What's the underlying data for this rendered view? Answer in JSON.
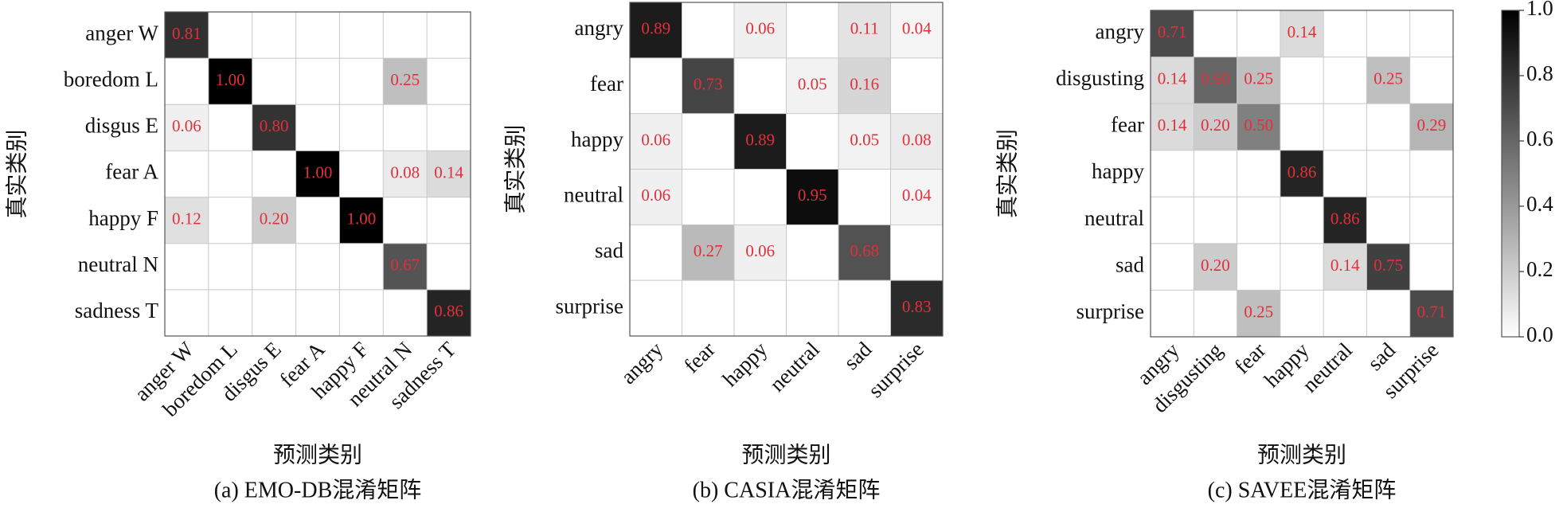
{
  "chart_data": [
    {
      "type": "heatmap",
      "caption": "(a) EMO-DB混淆矩阵",
      "x_label": "预测类别",
      "y_label": "真实类别",
      "categories": [
        "anger W",
        "boredom L",
        "disgus E",
        "fear A",
        "happy F",
        "neutral N",
        "sadness T"
      ],
      "values": [
        [
          0.81,
          null,
          null,
          null,
          null,
          null,
          null
        ],
        [
          null,
          1.0,
          null,
          null,
          null,
          0.25,
          null
        ],
        [
          0.06,
          null,
          0.8,
          null,
          null,
          null,
          null
        ],
        [
          null,
          null,
          null,
          1.0,
          null,
          0.08,
          0.14
        ],
        [
          0.12,
          null,
          0.2,
          null,
          1.0,
          null,
          null
        ],
        [
          null,
          null,
          null,
          null,
          null,
          0.67,
          null
        ],
        [
          null,
          null,
          null,
          null,
          null,
          null,
          0.86
        ]
      ],
      "value_labels": [
        [
          "0.81",
          null,
          null,
          null,
          null,
          null,
          null
        ],
        [
          null,
          "1.00",
          null,
          null,
          null,
          "0.25",
          null
        ],
        [
          "0.06",
          null,
          "0.80",
          null,
          null,
          null,
          null
        ],
        [
          null,
          null,
          null,
          "1.00",
          null,
          "0.08",
          "0.14"
        ],
        [
          "0.12",
          null,
          "0.20",
          null,
          "1.00",
          null,
          null
        ],
        [
          null,
          null,
          null,
          null,
          null,
          "0.67",
          null
        ],
        [
          null,
          null,
          null,
          null,
          null,
          null,
          "0.86"
        ]
      ],
      "cmap": [
        "#ffffff",
        "#000000"
      ],
      "label_color": "#e0303a"
    },
    {
      "type": "heatmap",
      "caption": "(b) CASIA混淆矩阵",
      "x_label": "预测类别",
      "y_label": "真实类别",
      "categories": [
        "angry",
        "fear",
        "happy",
        "neutral",
        "sad",
        "surprise"
      ],
      "values": [
        [
          0.89,
          null,
          0.06,
          null,
          0.11,
          0.04
        ],
        [
          null,
          0.73,
          null,
          0.05,
          0.16,
          null
        ],
        [
          0.06,
          null,
          0.89,
          null,
          0.05,
          0.08
        ],
        [
          0.06,
          null,
          null,
          0.95,
          null,
          0.04
        ],
        [
          null,
          0.27,
          0.06,
          null,
          0.68,
          null
        ],
        [
          null,
          null,
          null,
          null,
          null,
          0.83
        ]
      ],
      "value_labels": [
        [
          "0.89",
          null,
          "0.06",
          null,
          "0.11",
          "0.04"
        ],
        [
          null,
          "0.73",
          null,
          "0.05",
          "0.16",
          null
        ],
        [
          "0.06",
          null,
          "0.89",
          null,
          "0.05",
          "0.08"
        ],
        [
          "0.06",
          null,
          null,
          "0.95",
          null,
          "0.04"
        ],
        [
          null,
          "0.27",
          "0.06",
          null,
          "0.68",
          null
        ],
        [
          null,
          null,
          null,
          null,
          null,
          "0.83"
        ]
      ],
      "cmap": [
        "#ffffff",
        "#000000"
      ],
      "label_color": "#e0303a"
    },
    {
      "type": "heatmap",
      "caption": "(c) SAVEE混淆矩阵",
      "x_label": "预测类别",
      "y_label": "真实类别",
      "categories": [
        "angry",
        "disgusting",
        "fear",
        "happy",
        "neutral",
        "sad",
        "surprise"
      ],
      "values": [
        [
          0.71,
          null,
          null,
          0.14,
          null,
          null,
          null
        ],
        [
          0.14,
          0.6,
          0.25,
          null,
          null,
          0.25,
          null
        ],
        [
          0.14,
          0.2,
          0.5,
          null,
          null,
          null,
          0.29
        ],
        [
          null,
          null,
          null,
          0.86,
          null,
          null,
          null
        ],
        [
          null,
          null,
          null,
          null,
          0.86,
          null,
          null
        ],
        [
          null,
          0.2,
          null,
          null,
          0.14,
          0.75,
          null
        ],
        [
          null,
          null,
          0.25,
          null,
          null,
          null,
          0.71
        ]
      ],
      "value_labels": [
        [
          "0.71",
          null,
          null,
          "0.14",
          null,
          null,
          null
        ],
        [
          "0.14",
          "0.60",
          "0.25",
          null,
          null,
          "0.25",
          null
        ],
        [
          "0.14",
          "0.20",
          "0.50",
          null,
          null,
          null,
          "0.29"
        ],
        [
          null,
          null,
          null,
          "0.86",
          null,
          null,
          null
        ],
        [
          null,
          null,
          null,
          null,
          "0.86",
          null,
          null
        ],
        [
          null,
          "0.20",
          null,
          null,
          "0.14",
          "0.75",
          null
        ],
        [
          null,
          null,
          "0.25",
          null,
          null,
          null,
          "0.71"
        ]
      ],
      "cmap": [
        "#ffffff",
        "#000000"
      ],
      "label_color": "#e0303a",
      "zlim": [
        0,
        1
      ],
      "zticks": [
        {
          "value": 0,
          "label": "0.0"
        },
        {
          "value": 0.2,
          "label": "0.2"
        },
        {
          "value": 0.4,
          "label": "0.4"
        },
        {
          "value": 0.6,
          "label": "0.6"
        },
        {
          "value": 0.8,
          "label": "0.8"
        },
        {
          "value": 1,
          "label": "1.0"
        }
      ]
    }
  ]
}
